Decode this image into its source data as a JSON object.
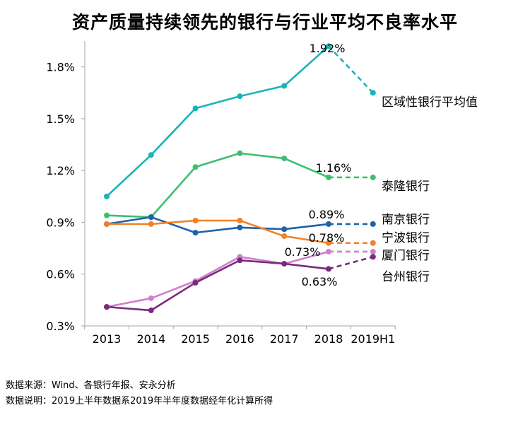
{
  "chart_data": {
    "type": "line",
    "title": "资产质量持续领先的银行与行业平均不良率水平",
    "categories": [
      "2013",
      "2014",
      "2015",
      "2016",
      "2017",
      "2018",
      "2019H1"
    ],
    "yticks": [
      "0.3%",
      "0.6%",
      "0.9%",
      "1.2%",
      "1.5%",
      "1.8%"
    ],
    "ylim": [
      0.3,
      1.95
    ],
    "grid": false,
    "dashed_last_segment": true,
    "series": [
      {
        "name": "区域性银行平均值",
        "color": "#1ab3b7",
        "values": [
          1.05,
          1.29,
          1.56,
          1.63,
          1.69,
          1.92,
          1.65
        ],
        "annotation": {
          "index": 5,
          "text": "1.92%"
        }
      },
      {
        "name": "泰隆银行",
        "color": "#3cbf6e",
        "values": [
          0.94,
          0.93,
          1.22,
          1.3,
          1.27,
          1.16,
          1.16
        ],
        "annotation": {
          "index": 5,
          "text": "1.16%"
        }
      },
      {
        "name": "南京银行",
        "color": "#1e62a8",
        "values": [
          0.89,
          0.93,
          0.84,
          0.87,
          0.86,
          0.89,
          0.89
        ],
        "annotation": {
          "index": 5,
          "text": "0.89%"
        }
      },
      {
        "name": "宁波银行",
        "color": "#f08228",
        "values": [
          0.89,
          0.89,
          0.91,
          0.91,
          0.82,
          0.78,
          0.78
        ],
        "annotation": {
          "index": 5,
          "text": "0.78%"
        }
      },
      {
        "name": "厦门银行",
        "color": "#cf7fcc",
        "values": [
          0.41,
          0.46,
          0.56,
          0.7,
          0.66,
          0.73,
          0.73
        ],
        "annotation": {
          "index": 5,
          "text": "0.73%"
        }
      },
      {
        "name": "台州银行",
        "color": "#7a2a7e",
        "values": [
          0.41,
          0.39,
          0.55,
          0.68,
          0.66,
          0.63,
          0.7
        ],
        "annotation": {
          "index": 5,
          "text": "0.63%"
        }
      }
    ]
  },
  "notes": {
    "source": "数据来源：Wind、各银行年报、安永分析",
    "explanation": "数据说明：2019上半年数据系2019年半年度数据经年化计算所得"
  }
}
